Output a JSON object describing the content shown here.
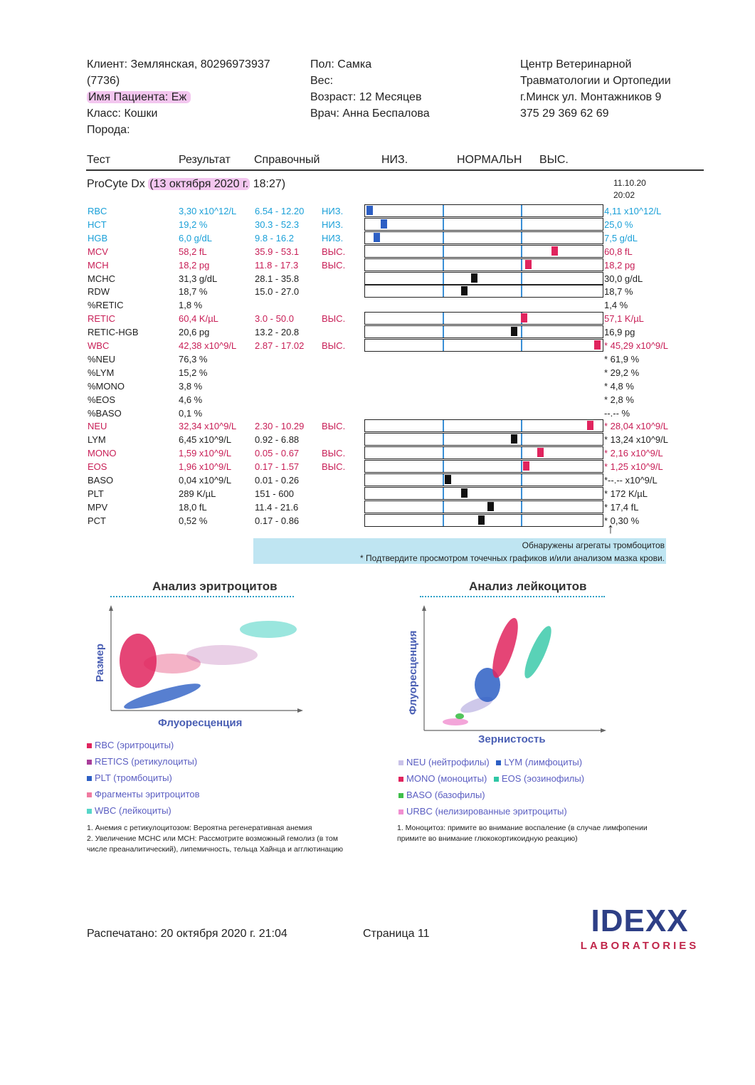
{
  "header": {
    "client": "Клиент: Землянская, 80296973937",
    "client_cont": "(7736)",
    "patient": "Имя Пациента: Еж",
    "class": "Класс: Кошки",
    "breed": "Порода:",
    "sex": "Пол: Самка",
    "weight": "Вес:",
    "age": "Возраст: 12 Месяцев",
    "doctor": "Врач: Анна Беспалова",
    "clinic": [
      "Центр Ветеринарной",
      "Травматологии и Ортопедии",
      "г.Минск ул. Монтажников 9",
      "375 29 369 62 69"
    ]
  },
  "columns": {
    "test": "Тест",
    "result": "Результат",
    "reference": "Справочный",
    "low": "НИЗ.",
    "normal": "НОРМАЛЬН",
    "high": "ВЫС."
  },
  "section": {
    "device": "ProCyte Dx ",
    "date_open": "(",
    "date": "13 октября 2020 г.",
    "time": " 18:27)",
    "prev_date": "11.10.20",
    "prev_time": "20:02"
  },
  "colors": {
    "low": "#1aa0d8",
    "high": "#c81e56",
    "normal": "#222222",
    "marker_low": "#2d5fc4",
    "marker_high": "#e0245e",
    "marker_normal": "#111111"
  },
  "rows": [
    {
      "name": "RBC",
      "result": "3,30 x10^12/L",
      "ref": "6.54 - 12.20",
      "flag": "НИЗ.",
      "prev": "4,11 x10^12/L",
      "status": "low",
      "bar": true,
      "level": 0.02
    },
    {
      "name": "HCT",
      "result": "19,2 %",
      "ref": "30.3 - 52.3",
      "flag": "НИЗ.",
      "prev": "25,0 %",
      "status": "low",
      "bar": true,
      "level": 0.08
    },
    {
      "name": "HGB",
      "result": "6,0 g/dL",
      "ref": "9.8 - 16.2",
      "flag": "НИЗ.",
      "prev": "7,5 g/dL",
      "status": "low",
      "bar": true,
      "level": 0.05
    },
    {
      "name": "MCV",
      "result": "58,2 fL",
      "ref": "35.9 - 53.1",
      "flag": "ВЫС.",
      "prev": "60,8 fL",
      "status": "high",
      "bar": true,
      "level": 0.8
    },
    {
      "name": "MCH",
      "result": "18,2 pg",
      "ref": "11.8 - 17.3",
      "flag": "ВЫС.",
      "prev": "18,2 pg",
      "status": "high",
      "bar": true,
      "level": 0.69
    },
    {
      "name": "MCHC",
      "result": "31,3 g/dL",
      "ref": "28.1 - 35.8",
      "flag": "",
      "prev": "30,0 g/dL",
      "status": "normal",
      "bar": true,
      "level": 0.46
    },
    {
      "name": "RDW",
      "result": "18,7 %",
      "ref": "15.0 - 27.0",
      "flag": "",
      "prev": "18,7 %",
      "status": "normal",
      "bar": true,
      "level": 0.42
    },
    {
      "name": "%RETIC",
      "result": "1,8 %",
      "ref": "",
      "flag": "",
      "prev": "1,4 %",
      "status": "normal",
      "bar": false
    },
    {
      "name": "RETIC",
      "result": "60,4 K/µL",
      "ref": "3.0 - 50.0",
      "flag": "ВЫС.",
      "prev": "57,1 K/µL",
      "status": "high",
      "bar": true,
      "level": 0.67
    },
    {
      "name": "RETIC-HGB",
      "result": "20,6 pg",
      "ref": "13.2 - 20.8",
      "flag": "",
      "prev": "16,9 pg",
      "status": "normal",
      "bar": true,
      "level": 0.63
    },
    {
      "name": "WBC",
      "result": "42,38 x10^9/L",
      "ref": "2.87 - 17.02",
      "flag": "ВЫС.",
      "prev": "* 45,29 x10^9/L",
      "status": "high",
      "bar": true,
      "level": 0.98
    },
    {
      "name": "%NEU",
      "result": "76,3 %",
      "ref": "",
      "flag": "",
      "prev": "* 61,9 %",
      "status": "normal",
      "bar": false
    },
    {
      "name": "%LYM",
      "result": "15,2 %",
      "ref": "",
      "flag": "",
      "prev": "* 29,2 %",
      "status": "normal",
      "bar": false
    },
    {
      "name": "%MONO",
      "result": "3,8 %",
      "ref": "",
      "flag": "",
      "prev": "* 4,8 %",
      "status": "normal",
      "bar": false
    },
    {
      "name": "%EOS",
      "result": "4,6 %",
      "ref": "",
      "flag": "",
      "prev": "* 2,8 %",
      "status": "normal",
      "bar": false
    },
    {
      "name": "%BASO",
      "result": "0,1 %",
      "ref": "",
      "flag": "",
      "prev": "--.--  %",
      "status": "normal",
      "bar": false
    },
    {
      "name": "NEU",
      "result": "32,34 x10^9/L",
      "ref": "2.30 - 10.29",
      "flag": "ВЫС.",
      "prev": "* 28,04 x10^9/L",
      "status": "high",
      "bar": true,
      "level": 0.95
    },
    {
      "name": "LYM",
      "result": "6,45 x10^9/L",
      "ref": "0.92 - 6.88",
      "flag": "",
      "prev": "* 13,24 x10^9/L",
      "status": "normal",
      "bar": true,
      "level": 0.63
    },
    {
      "name": "MONO",
      "result": "1,59 x10^9/L",
      "ref": "0.05 - 0.67",
      "flag": "ВЫС.",
      "prev": "* 2,16 x10^9/L",
      "status": "high",
      "bar": true,
      "level": 0.74
    },
    {
      "name": "EOS",
      "result": "1,96 x10^9/L",
      "ref": "0.17 - 1.57",
      "flag": "ВЫС.",
      "prev": "* 1,25 x10^9/L",
      "status": "high",
      "bar": true,
      "level": 0.68
    },
    {
      "name": "BASO",
      "result": "0,04 x10^9/L",
      "ref": "0.01 - 0.26",
      "flag": "",
      "prev": "*--.-- x10^9/L",
      "status": "normal",
      "bar": true,
      "level": 0.35
    },
    {
      "name": "PLT",
      "result": "289 K/µL",
      "ref": "151 - 600",
      "flag": "",
      "prev": "* 172 K/µL",
      "status": "normal",
      "bar": true,
      "level": 0.42
    },
    {
      "name": "MPV",
      "result": "18,0 fL",
      "ref": "11.4 - 21.6",
      "flag": "",
      "prev": "* 17,4 fL",
      "status": "normal",
      "bar": true,
      "level": 0.53
    },
    {
      "name": "PCT",
      "result": "0,52 %",
      "ref": "0.17 - 0.86",
      "flag": "",
      "prev": "* 0,30 %",
      "status": "normal",
      "bar": true,
      "level": 0.49
    }
  ],
  "arrow": "↑",
  "notice": {
    "line1": "Обнаружены агрегаты тромбоцитов",
    "line2": "* Подтвердите просмотром точечных графиков и/или анализом мазка крови."
  },
  "rbc_chart": {
    "title": "Анализ эритроцитов",
    "ylabel": "Размер",
    "xlabel": "Флуоресценция",
    "legend": [
      {
        "label": "RBC (эритроциты)",
        "color": "#e0245e"
      },
      {
        "label": "RETICS (ретикулоциты)",
        "color": "#a83e9a"
      },
      {
        "label": "PLT (тромбоциты)",
        "color": "#2d5fc4"
      },
      {
        "label": "Фрагменты эритроцитов",
        "color": "#f07aa0"
      },
      {
        "label": "WBC (лейкоциты)",
        "color": "#56d6c8"
      }
    ],
    "notes": [
      "1. Анемия с ретикулоцитозом: Вероятна регенеративная анемия",
      "2. Увеличение МСНС или МСН: Рассмотрите возможный гемолиз (в том",
      "числе преаналитический), липемичность, тельца Хайнца и агглютинацию"
    ]
  },
  "wbc_chart": {
    "title": "Анализ лейкоцитов",
    "ylabel": "Флуоресценция",
    "xlabel": "Зернистость",
    "legend": [
      [
        {
          "label": "NEU (нейтрофилы)",
          "color": "#c9c2e8"
        },
        {
          "label": "LYM (лимфоциты)",
          "color": "#2d5fc4"
        }
      ],
      [
        {
          "label": "MONO (моноциты)",
          "color": "#e0245e"
        },
        {
          "label": "EOS (эозинофилы)",
          "color": "#2fc7a5"
        }
      ],
      [
        {
          "label": "BASO (базофилы)",
          "color": "#3fbf4a"
        }
      ],
      [
        {
          "label": "URBC (нелизированные эритроциты)",
          "color": "#f08fd0"
        }
      ]
    ],
    "notes": [
      "1. Моноцитоз: примите во внимание воспаление (в случае лимфопении",
      "примите во внимание глюкокортикоидную реакцию)"
    ]
  },
  "footer": {
    "printed": "Распечатано: 20 октября 2020 г. 21:04",
    "page": "Страница 11"
  },
  "logo": {
    "name": "IDEXX",
    "sub": "LABORATORIES"
  }
}
